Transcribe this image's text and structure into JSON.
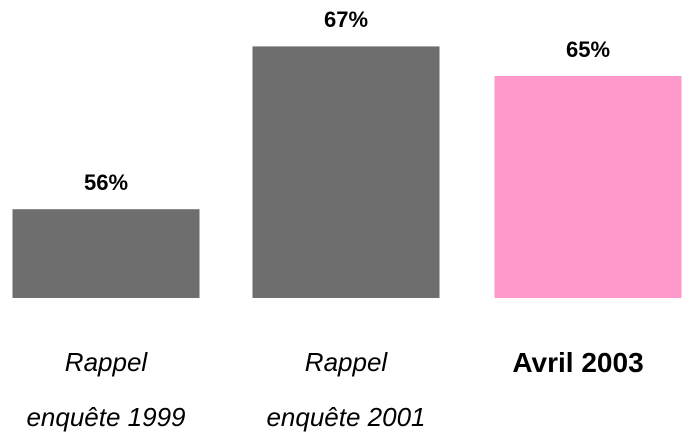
{
  "chart_data": {
    "type": "bar",
    "categories": [
      "Rappel\nenquête 1999",
      "Rappel\nenquête 2001",
      "Avril 2003"
    ],
    "values": [
      56,
      67,
      65
    ],
    "value_labels": [
      "56%",
      "67%",
      "65%"
    ],
    "colors": [
      "#6e6e6e",
      "#6e6e6e",
      "#ff99cc"
    ],
    "ylim": [
      50,
      70
    ]
  }
}
